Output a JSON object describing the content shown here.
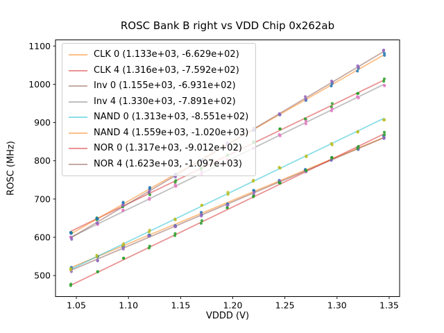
{
  "figure": {
    "title": "ROSC Bank B right vs VDD Chip 0x262ab",
    "xlabel": "VDDD (V)",
    "ylabel": "ROSC (MHz)",
    "background_color": "#ffffff",
    "spine_color": "#000000",
    "tick_text_color": "#000000"
  },
  "chart_data": {
    "type": "scatter",
    "title": "ROSC Bank B right vs VDD Chip 0x262ab",
    "xlabel": "VDDD (V)",
    "ylabel": "ROSC (MHz)",
    "xlim": [
      1.03,
      1.36
    ],
    "ylim": [
      445,
      1116
    ],
    "x_ticks": [
      1.05,
      1.1,
      1.15,
      1.2,
      1.25,
      1.3,
      1.35
    ],
    "y_ticks": [
      500,
      600,
      700,
      800,
      900,
      1000,
      1100
    ],
    "grid": false,
    "legend_position": "upper-left",
    "fit_model": "ROSC_MHz = slope * VDDD_V + intercept; legend shows (slope, intercept)",
    "x": [
      1.045,
      1.07,
      1.095,
      1.12,
      1.145,
      1.17,
      1.195,
      1.22,
      1.245,
      1.27,
      1.295,
      1.32,
      1.345
    ],
    "samples_per_x": 2,
    "series": [
      {
        "name": "CLK 0",
        "legend_label": "CLK 0 (1.133e+03, -6.629e+02)",
        "slope": 1133,
        "intercept": -662.9,
        "marker_color": "#1f77b4",
        "line_color": "#ff7f0e",
        "line_alpha": 0.5
      },
      {
        "name": "CLK 4",
        "legend_label": "CLK 4 (1.316e+03, -7.592e+02)",
        "slope": 1316,
        "intercept": -759.2,
        "marker_color": "#2ca02c",
        "line_color": "#d62728",
        "line_alpha": 0.5
      },
      {
        "name": "Inv 0",
        "legend_label": "Inv 0 (1.155e+03, -6.931e+02)",
        "slope": 1155,
        "intercept": -693.1,
        "marker_color": "#9467bd",
        "line_color": "#8c564b",
        "line_alpha": 0.5
      },
      {
        "name": "Inv 4",
        "legend_label": "Inv 4 (1.330e+03, -7.891e+02)",
        "slope": 1330,
        "intercept": -789.1,
        "marker_color": "#e377c2",
        "line_color": "#7f7f7f",
        "line_alpha": 0.5
      },
      {
        "name": "NAND 0",
        "legend_label": "NAND 0 (1.313e+03, -8.551e+02)",
        "slope": 1313,
        "intercept": -855.1,
        "marker_color": "#bcbd22",
        "line_color": "#17becf",
        "line_alpha": 0.5
      },
      {
        "name": "NAND 4",
        "legend_label": "NAND 4 (1.559e+03, -1.020e+03)",
        "slope": 1559,
        "intercept": -1020.0,
        "marker_color": "#1f77b4",
        "line_color": "#ff7f0e",
        "line_alpha": 0.5
      },
      {
        "name": "NOR 0",
        "legend_label": "NOR 0 (1.317e+03, -9.012e+02)",
        "slope": 1317,
        "intercept": -901.2,
        "marker_color": "#2ca02c",
        "line_color": "#d62728",
        "line_alpha": 0.5
      },
      {
        "name": "NOR 4",
        "legend_label": "NOR 4 (1.623e+03, -1.097e+03)",
        "slope": 1623,
        "intercept": -1097.0,
        "marker_color": "#9467bd",
        "line_color": "#8c564b",
        "line_alpha": 0.5
      }
    ]
  }
}
